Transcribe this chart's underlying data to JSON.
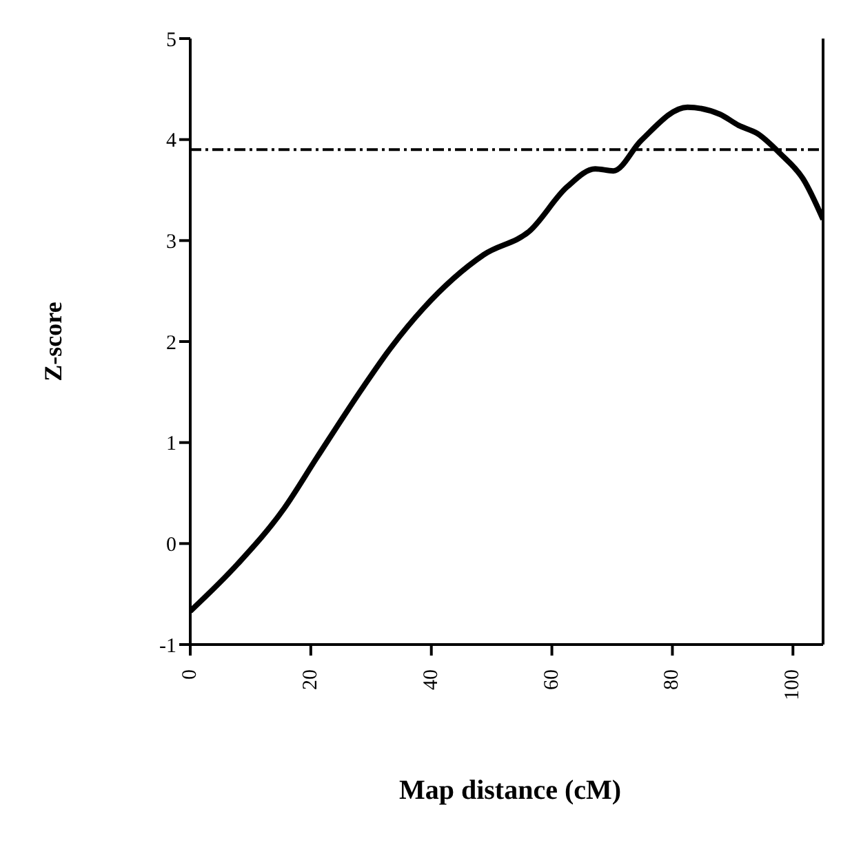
{
  "chart_data": {
    "type": "line",
    "xlabel": "Map distance (cM)",
    "ylabel": "Z-score",
    "xlim": [
      0,
      105
    ],
    "xticks": [
      0,
      20,
      40,
      60,
      80,
      100
    ],
    "ylim": [
      -1,
      5
    ],
    "yticks": [
      -1,
      0,
      1,
      2,
      3,
      4,
      5
    ],
    "marker": "none",
    "line_style": "solid",
    "series": [
      {
        "color": "#000000",
        "x": [
          0,
          7.9,
          15.6,
          21,
          28.7,
          33.3,
          38.7,
          48.7,
          56.4,
          62.5,
          67.2,
          70.2,
          74.8,
          82.5,
          87.9,
          91,
          94.1,
          97.9,
          101.8,
          105
        ],
        "values": [
          -0.67,
          -0.2,
          0.35,
          0.85,
          1.55,
          1.94,
          2.33,
          2.86,
          3.1,
          3.53,
          3.71,
          3.69,
          3.99,
          4.32,
          4.25,
          4.14,
          4.06,
          3.86,
          3.6,
          3.21
        ]
      }
    ],
    "ref_lines": [
      {
        "axis": "y",
        "value": 3.9,
        "line_style": "dashdot",
        "color": "#000000"
      }
    ]
  }
}
